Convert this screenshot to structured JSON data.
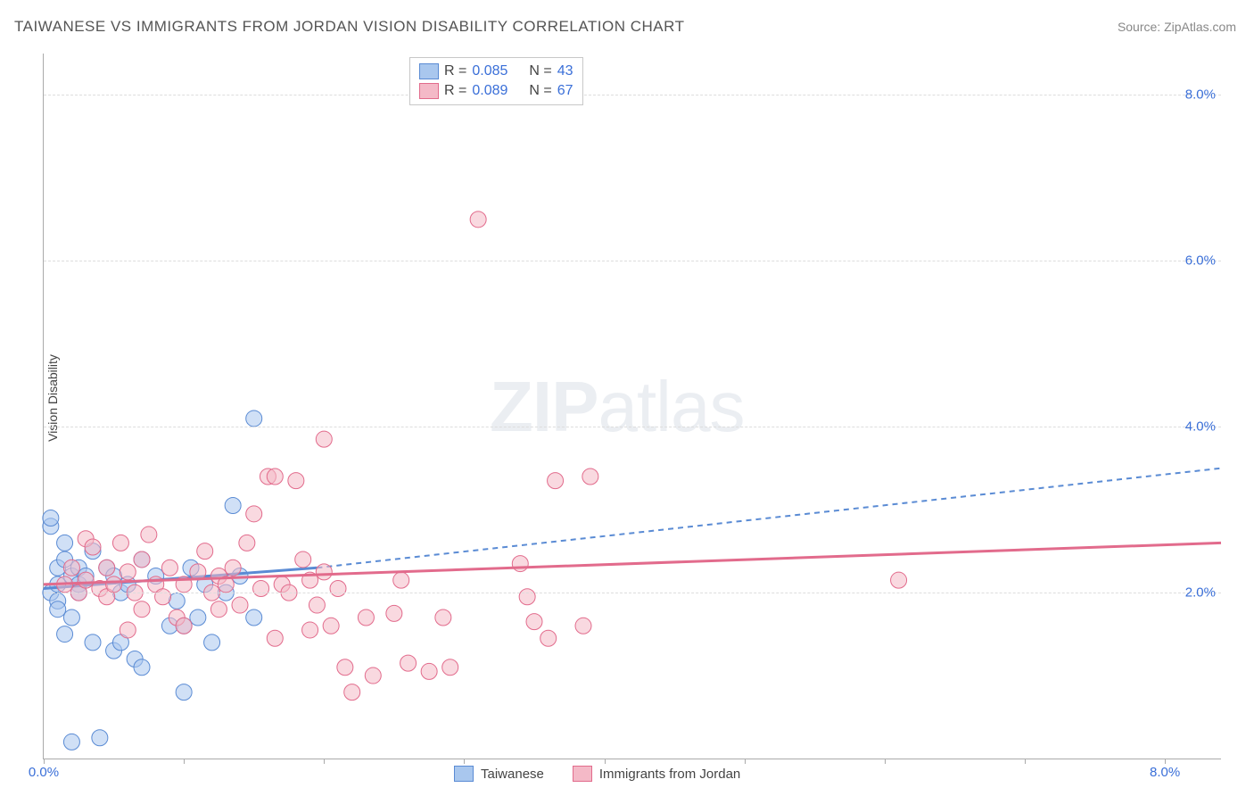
{
  "header": {
    "title": "TAIWANESE VS IMMIGRANTS FROM JORDAN VISION DISABILITY CORRELATION CHART",
    "source": "Source: ZipAtlas.com"
  },
  "chart": {
    "type": "scatter",
    "ylabel": "Vision Disability",
    "xlim": [
      0,
      8.4
    ],
    "ylim": [
      0,
      8.5
    ],
    "xtick_positions": [
      0,
      1,
      2,
      3,
      4,
      5,
      6,
      7,
      8
    ],
    "xtick_labels": {
      "first": "0.0%",
      "last": "8.0%"
    },
    "ytick_positions": [
      2,
      4,
      6,
      8
    ],
    "ytick_labels": [
      "2.0%",
      "4.0%",
      "6.0%",
      "8.0%"
    ],
    "label_color": "#3a6fd8",
    "background_color": "#ffffff",
    "grid_color": "#dddddd",
    "marker_radius": 9,
    "marker_opacity": 0.55,
    "watermark": "ZIPatlas",
    "series": [
      {
        "name": "Taiwanese",
        "color_fill": "#a9c7ee",
        "color_stroke": "#5a8bd4",
        "points": [
          [
            0.05,
            2.0
          ],
          [
            0.05,
            2.8
          ],
          [
            0.05,
            2.9
          ],
          [
            0.1,
            2.3
          ],
          [
            0.1,
            1.9
          ],
          [
            0.1,
            2.1
          ],
          [
            0.1,
            1.8
          ],
          [
            0.15,
            2.4
          ],
          [
            0.15,
            2.6
          ],
          [
            0.15,
            1.5
          ],
          [
            0.2,
            2.2
          ],
          [
            0.2,
            1.7
          ],
          [
            0.2,
            0.2
          ],
          [
            0.25,
            2.1
          ],
          [
            0.25,
            2.0
          ],
          [
            0.25,
            2.3
          ],
          [
            0.3,
            2.2
          ],
          [
            0.35,
            1.4
          ],
          [
            0.35,
            2.5
          ],
          [
            0.4,
            0.25
          ],
          [
            0.45,
            2.3
          ],
          [
            0.5,
            1.3
          ],
          [
            0.5,
            2.2
          ],
          [
            0.55,
            2.0
          ],
          [
            0.55,
            1.4
          ],
          [
            0.6,
            2.1
          ],
          [
            0.65,
            1.2
          ],
          [
            0.7,
            2.4
          ],
          [
            0.7,
            1.1
          ],
          [
            0.8,
            2.2
          ],
          [
            0.9,
            1.6
          ],
          [
            0.95,
            1.9
          ],
          [
            1.0,
            1.6
          ],
          [
            1.0,
            0.8
          ],
          [
            1.05,
            2.3
          ],
          [
            1.1,
            1.7
          ],
          [
            1.15,
            2.1
          ],
          [
            1.2,
            1.4
          ],
          [
            1.3,
            2.0
          ],
          [
            1.35,
            3.05
          ],
          [
            1.4,
            2.2
          ],
          [
            1.5,
            4.1
          ],
          [
            1.5,
            1.7
          ]
        ],
        "trend_solid": {
          "x1": 0,
          "y1": 2.05,
          "x2": 1.95,
          "y2": 2.3
        },
        "trend_dashed": {
          "x1": 1.95,
          "y1": 2.3,
          "x2": 8.4,
          "y2": 3.5
        }
      },
      {
        "name": "Immigrants from Jordan",
        "color_fill": "#f4b9c7",
        "color_stroke": "#e26b8c",
        "points": [
          [
            0.15,
            2.1
          ],
          [
            0.2,
            2.3
          ],
          [
            0.25,
            2.0
          ],
          [
            0.3,
            2.15
          ],
          [
            0.3,
            2.65
          ],
          [
            0.35,
            2.55
          ],
          [
            0.4,
            2.05
          ],
          [
            0.45,
            1.95
          ],
          [
            0.45,
            2.3
          ],
          [
            0.5,
            2.1
          ],
          [
            0.55,
            2.6
          ],
          [
            0.6,
            2.25
          ],
          [
            0.6,
            1.55
          ],
          [
            0.65,
            2.0
          ],
          [
            0.7,
            1.8
          ],
          [
            0.7,
            2.4
          ],
          [
            0.75,
            2.7
          ],
          [
            0.8,
            2.1
          ],
          [
            0.85,
            1.95
          ],
          [
            0.9,
            2.3
          ],
          [
            0.95,
            1.7
          ],
          [
            1.0,
            2.1
          ],
          [
            1.0,
            1.6
          ],
          [
            1.1,
            2.25
          ],
          [
            1.15,
            2.5
          ],
          [
            1.2,
            2.0
          ],
          [
            1.25,
            1.8
          ],
          [
            1.25,
            2.2
          ],
          [
            1.3,
            2.1
          ],
          [
            1.35,
            2.3
          ],
          [
            1.4,
            1.85
          ],
          [
            1.45,
            2.6
          ],
          [
            1.5,
            2.95
          ],
          [
            1.55,
            2.05
          ],
          [
            1.6,
            3.4
          ],
          [
            1.65,
            1.45
          ],
          [
            1.65,
            3.4
          ],
          [
            1.7,
            2.1
          ],
          [
            1.75,
            2.0
          ],
          [
            1.8,
            3.35
          ],
          [
            1.85,
            2.4
          ],
          [
            1.9,
            2.15
          ],
          [
            1.9,
            1.55
          ],
          [
            1.95,
            1.85
          ],
          [
            2.0,
            2.25
          ],
          [
            2.0,
            3.85
          ],
          [
            2.05,
            1.6
          ],
          [
            2.1,
            2.05
          ],
          [
            2.15,
            1.1
          ],
          [
            2.2,
            0.8
          ],
          [
            2.3,
            1.7
          ],
          [
            2.35,
            1.0
          ],
          [
            2.5,
            1.75
          ],
          [
            2.55,
            2.15
          ],
          [
            2.6,
            1.15
          ],
          [
            2.75,
            1.05
          ],
          [
            2.85,
            1.7
          ],
          [
            2.9,
            1.1
          ],
          [
            3.1,
            6.5
          ],
          [
            3.4,
            2.35
          ],
          [
            3.45,
            1.95
          ],
          [
            3.5,
            1.65
          ],
          [
            3.6,
            1.45
          ],
          [
            3.65,
            3.35
          ],
          [
            3.9,
            3.4
          ],
          [
            3.85,
            1.6
          ],
          [
            6.1,
            2.15
          ]
        ],
        "trend_solid": {
          "x1": 0,
          "y1": 2.1,
          "x2": 8.4,
          "y2": 2.6
        }
      }
    ],
    "stats_box": {
      "rows": [
        {
          "swatch_fill": "#a9c7ee",
          "swatch_stroke": "#5a8bd4",
          "r_label": "R = ",
          "r_val": "0.085",
          "n_label": "N = ",
          "n_val": "43"
        },
        {
          "swatch_fill": "#f4b9c7",
          "swatch_stroke": "#e26b8c",
          "r_label": "R = ",
          "r_val": "0.089",
          "n_label": "N = ",
          "n_val": "67"
        }
      ]
    },
    "legend": [
      {
        "swatch_fill": "#a9c7ee",
        "swatch_stroke": "#5a8bd4",
        "label": "Taiwanese"
      },
      {
        "swatch_fill": "#f4b9c7",
        "swatch_stroke": "#e26b8c",
        "label": "Immigrants from Jordan"
      }
    ]
  }
}
